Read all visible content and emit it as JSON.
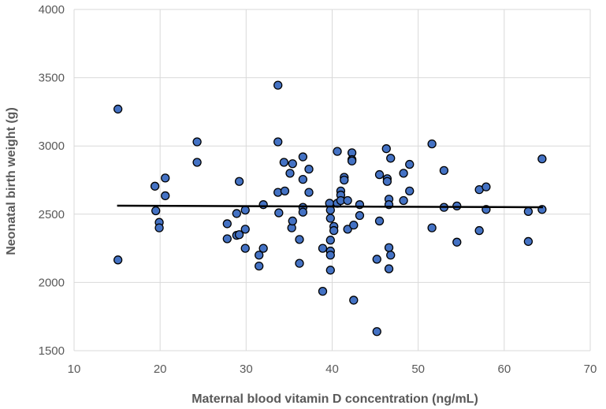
{
  "chart_data": {
    "type": "scatter",
    "title": "",
    "xlabel": "Maternal blood vitamin D concentration (ng/mL)",
    "ylabel": "Neonatal birth weight (g)",
    "xlim": [
      10,
      70
    ],
    "ylim": [
      1500,
      4000
    ],
    "xticks": [
      10,
      20,
      30,
      40,
      50,
      60,
      70
    ],
    "yticks": [
      1500,
      2000,
      2500,
      3000,
      3500,
      4000
    ],
    "grid": true,
    "legend": "none",
    "colors": {
      "marker_fill": "#4472C4",
      "marker_edge": "#000000",
      "trendline": "#000000",
      "grid": "#D9D9D9"
    },
    "trendline": {
      "type": "linear",
      "x": [
        15,
        64.5
      ],
      "y": [
        2562,
        2551
      ]
    },
    "points": [
      [
        15.1,
        3270
      ],
      [
        15.1,
        2165
      ],
      [
        19.4,
        2705
      ],
      [
        19.5,
        2525
      ],
      [
        19.9,
        2440
      ],
      [
        19.9,
        2400
      ],
      [
        20.6,
        2765
      ],
      [
        20.6,
        2635
      ],
      [
        24.3,
        3030
      ],
      [
        24.3,
        2880
      ],
      [
        27.8,
        2430
      ],
      [
        27.8,
        2320
      ],
      [
        28.9,
        2505
      ],
      [
        28.9,
        2345
      ],
      [
        29.2,
        2740
      ],
      [
        29.2,
        2350
      ],
      [
        29.9,
        2530
      ],
      [
        29.9,
        2390
      ],
      [
        29.9,
        2250
      ],
      [
        31.5,
        2200
      ],
      [
        31.5,
        2120
      ],
      [
        32.0,
        2570
      ],
      [
        32.0,
        2250
      ],
      [
        33.7,
        3445
      ],
      [
        33.7,
        3030
      ],
      [
        33.7,
        2660
      ],
      [
        33.8,
        2510
      ],
      [
        34.4,
        2880
      ],
      [
        34.5,
        2670
      ],
      [
        35.1,
        2800
      ],
      [
        35.4,
        2870
      ],
      [
        35.3,
        2400
      ],
      [
        35.4,
        2450
      ],
      [
        36.2,
        2315
      ],
      [
        36.2,
        2140
      ],
      [
        36.6,
        2920
      ],
      [
        36.6,
        2755
      ],
      [
        36.6,
        2550
      ],
      [
        36.6,
        2515
      ],
      [
        37.3,
        2830
      ],
      [
        37.3,
        2660
      ],
      [
        38.9,
        1935
      ],
      [
        38.9,
        2250
      ],
      [
        39.7,
        2580
      ],
      [
        39.8,
        2530
      ],
      [
        39.8,
        2470
      ],
      [
        39.8,
        2310
      ],
      [
        39.8,
        2230
      ],
      [
        39.8,
        2200
      ],
      [
        39.8,
        2090
      ],
      [
        40.2,
        2410
      ],
      [
        40.2,
        2380
      ],
      [
        40.6,
        2960
      ],
      [
        40.6,
        2580
      ],
      [
        41.0,
        2670
      ],
      [
        41.0,
        2640
      ],
      [
        41.0,
        2600
      ],
      [
        41.4,
        2770
      ],
      [
        41.4,
        2750
      ],
      [
        41.8,
        2600
      ],
      [
        41.8,
        2390
      ],
      [
        42.3,
        2950
      ],
      [
        42.3,
        2900
      ],
      [
        42.3,
        2890
      ],
      [
        42.5,
        2420
      ],
      [
        42.5,
        1870
      ],
      [
        43.2,
        2570
      ],
      [
        43.2,
        2490
      ],
      [
        45.2,
        1640
      ],
      [
        45.2,
        2170
      ],
      [
        45.5,
        2790
      ],
      [
        45.5,
        2450
      ],
      [
        46.3,
        2980
      ],
      [
        46.4,
        2760
      ],
      [
        46.4,
        2740
      ],
      [
        46.6,
        2610
      ],
      [
        46.6,
        2570
      ],
      [
        46.6,
        2255
      ],
      [
        46.6,
        2100
      ],
      [
        46.8,
        2910
      ],
      [
        46.8,
        2200
      ],
      [
        48.3,
        2800
      ],
      [
        48.3,
        2600
      ],
      [
        49.0,
        2865
      ],
      [
        49.0,
        2670
      ],
      [
        51.6,
        3015
      ],
      [
        51.6,
        2400
      ],
      [
        53.0,
        2820
      ],
      [
        53.0,
        2550
      ],
      [
        54.5,
        2560
      ],
      [
        54.5,
        2295
      ],
      [
        57.1,
        2680
      ],
      [
        57.1,
        2380
      ],
      [
        57.9,
        2700
      ],
      [
        57.9,
        2535
      ],
      [
        62.8,
        2520
      ],
      [
        62.8,
        2300
      ],
      [
        64.4,
        2905
      ],
      [
        64.4,
        2535
      ]
    ]
  }
}
